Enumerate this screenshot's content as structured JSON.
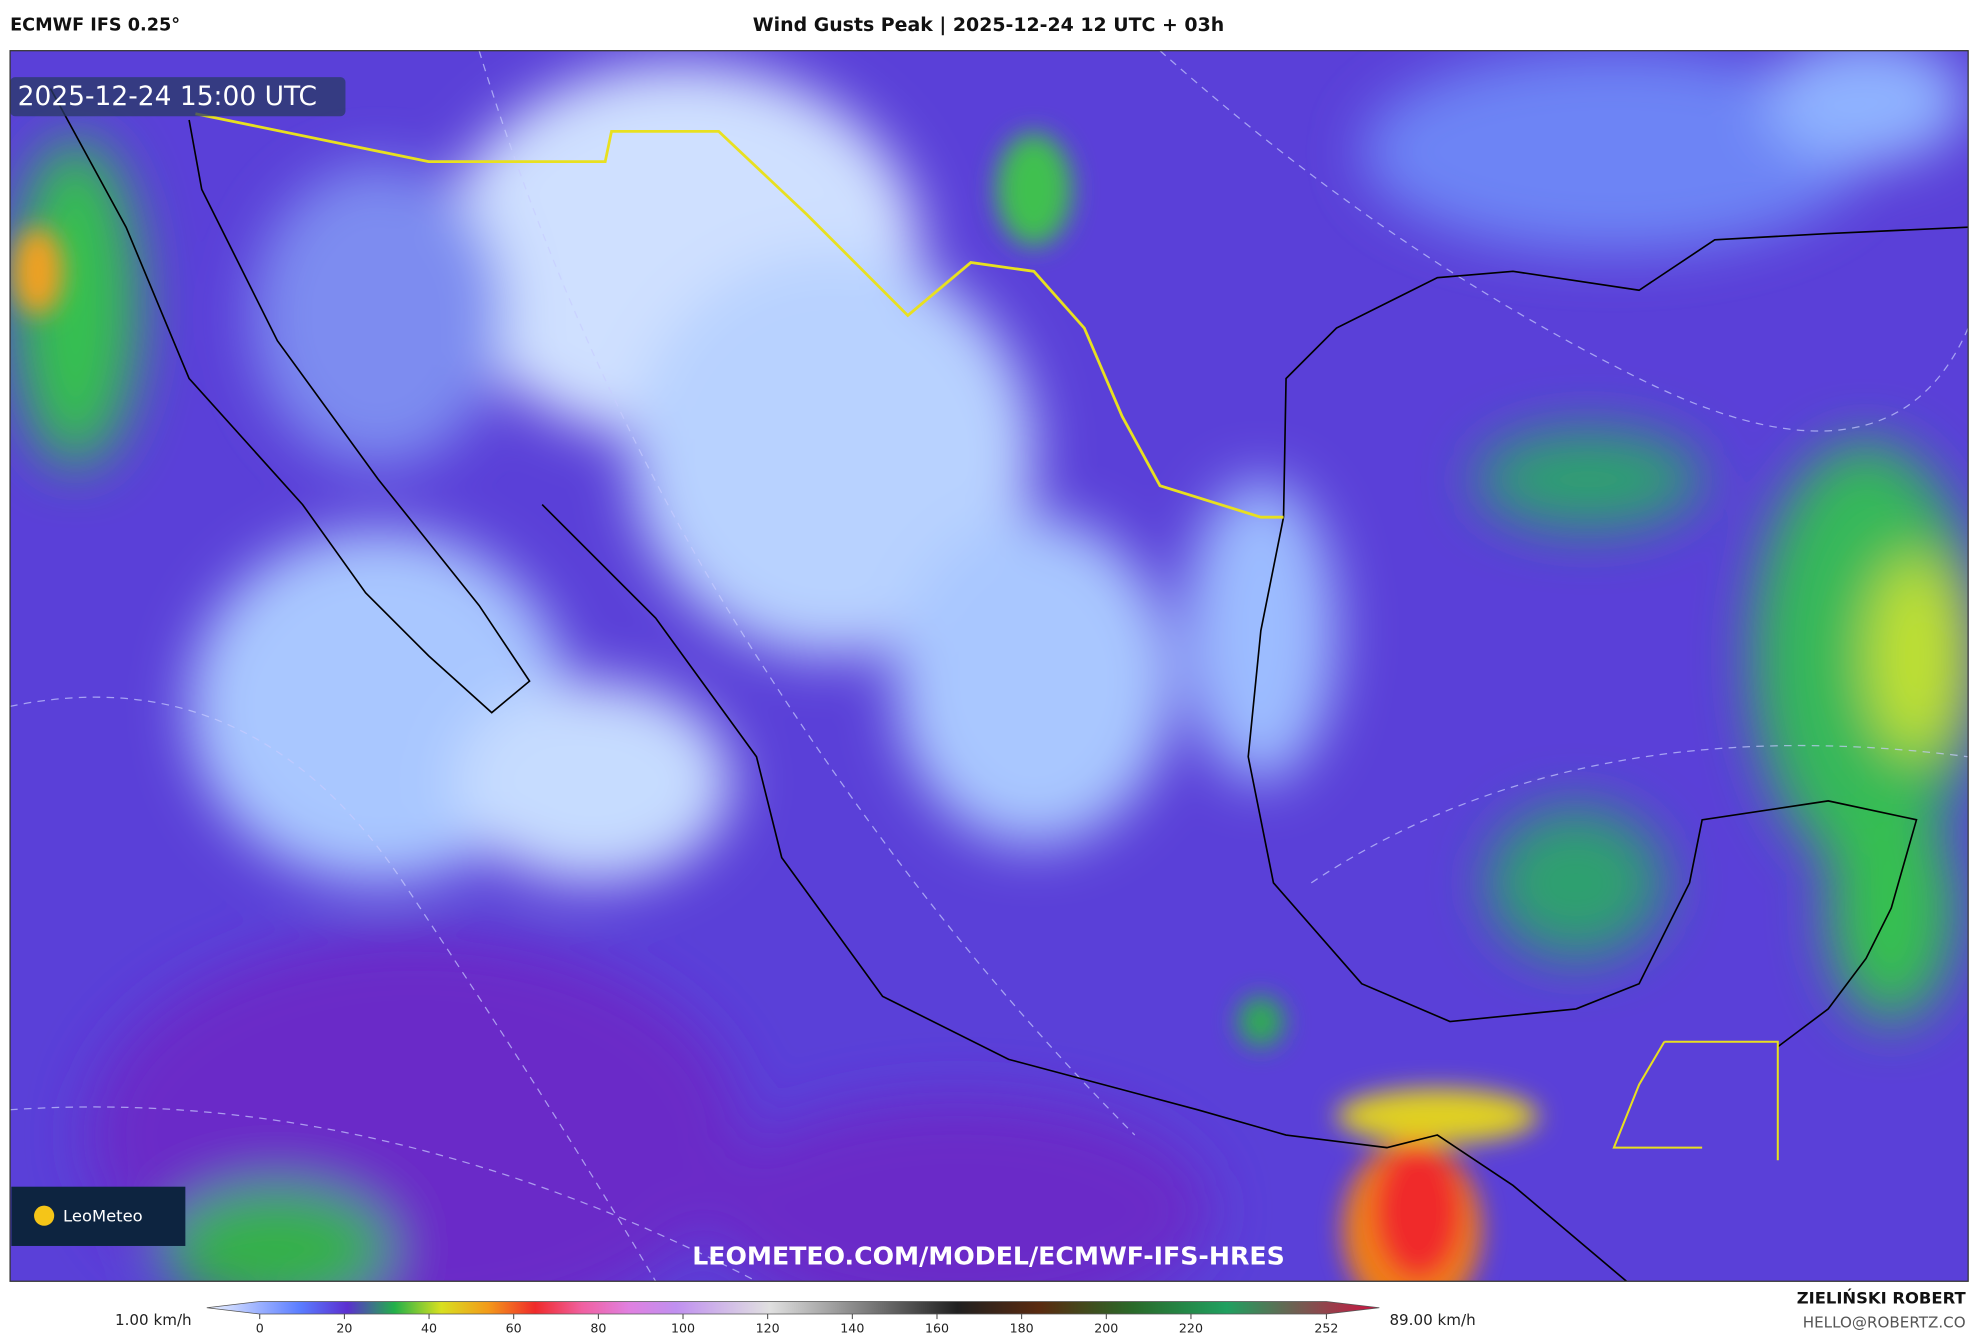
{
  "header": {
    "model": "ECMWF IFS 0.25°",
    "title": "Wind Gusts Peak | 2025-12-24 12 UTC + 03h"
  },
  "map": {
    "valid_time": "2025-12-24 15:00 UTC",
    "logo": "LeoMeteo",
    "url": "LEOMETEO.COM/MODEL/ECMWF-IFS-HRES"
  },
  "legend": {
    "min_label": "1.00 km/h",
    "max_label": "89.00 km/h",
    "ticks": [
      0,
      20,
      40,
      60,
      80,
      100,
      120,
      140,
      160,
      180,
      200,
      220,
      252
    ]
  },
  "footer": {
    "author": "ZIELIŃSKI ROBERT",
    "email": "HELLO@ROBERTZ.CO"
  }
}
